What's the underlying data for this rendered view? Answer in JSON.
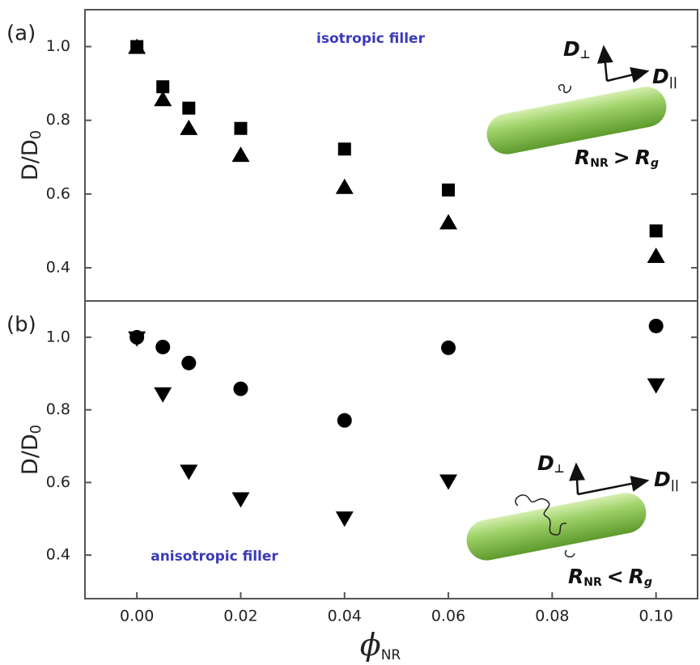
{
  "chart_data": [
    {
      "type": "scatter",
      "panel_label": "(a)",
      "annotation": "isotropic filler",
      "y_label": {
        "text": "D/D",
        "subscript": "0"
      },
      "inset": {
        "d": "D",
        "perp": "⊥",
        "par": "||",
        "r": "R",
        "r_sub": "NR",
        "relation": ">",
        "g": "g"
      },
      "xlim": [
        -0.01,
        0.108
      ],
      "ylim": [
        0.31,
        1.1
      ],
      "yticks": [
        0.4,
        0.6,
        0.8,
        {
          "value": 1,
          "label": "1.0"
        }
      ],
      "series": [
        {
          "marker": "square",
          "color": "#000000",
          "x": [
            0,
            0.005,
            0.01,
            0.02,
            0.04,
            0.06,
            0.1
          ],
          "values": [
            1.0,
            0.891,
            0.833,
            0.778,
            0.722,
            0.611,
            0.5
          ]
        },
        {
          "marker": "triangle-up",
          "color": "#000000",
          "x": [
            0,
            0.005,
            0.01,
            0.02,
            0.04,
            0.06,
            0.1
          ],
          "values": [
            1.0,
            0.858,
            0.78,
            0.707,
            0.62,
            0.524,
            0.433
          ]
        }
      ]
    },
    {
      "type": "scatter",
      "panel_label": "(b)",
      "annotation": "anisotropic filler",
      "y_label": {
        "text": "D/D",
        "subscript": "0"
      },
      "x_label": {
        "text": "ϕ",
        "subscript": "NR"
      },
      "inset": {
        "d": "D",
        "perp": "⊥",
        "par": "||",
        "r": "R",
        "r_sub": "NR",
        "relation": "<",
        "g": "g"
      },
      "xlim": [
        -0.01,
        0.108
      ],
      "ylim": [
        0.28,
        1.1
      ],
      "xticks": [
        {
          "value": 0,
          "label": "0.00"
        },
        {
          "value": 0.02,
          "label": "0.02"
        },
        {
          "value": 0.04,
          "label": "0.04"
        },
        {
          "value": 0.06,
          "label": "0.06"
        },
        {
          "value": 0.08,
          "label": "0.08"
        },
        {
          "value": 0.1,
          "label": "0.10"
        }
      ],
      "yticks": [
        0.4,
        0.6,
        0.8,
        {
          "value": 1,
          "label": "1.0"
        }
      ],
      "series": [
        {
          "marker": "circle",
          "color": "#000000",
          "x": [
            0,
            0.005,
            0.01,
            0.02,
            0.04,
            0.06,
            0.1
          ],
          "values": [
            1.0,
            0.973,
            0.929,
            0.858,
            0.771,
            0.971,
            1.031
          ]
        },
        {
          "marker": "triangle-down",
          "color": "#000000",
          "x": [
            0,
            0.005,
            0.01,
            0.02,
            0.04,
            0.06,
            0.1
          ],
          "values": [
            0.996,
            0.842,
            0.629,
            0.553,
            0.5,
            0.602,
            0.867
          ]
        }
      ]
    }
  ]
}
